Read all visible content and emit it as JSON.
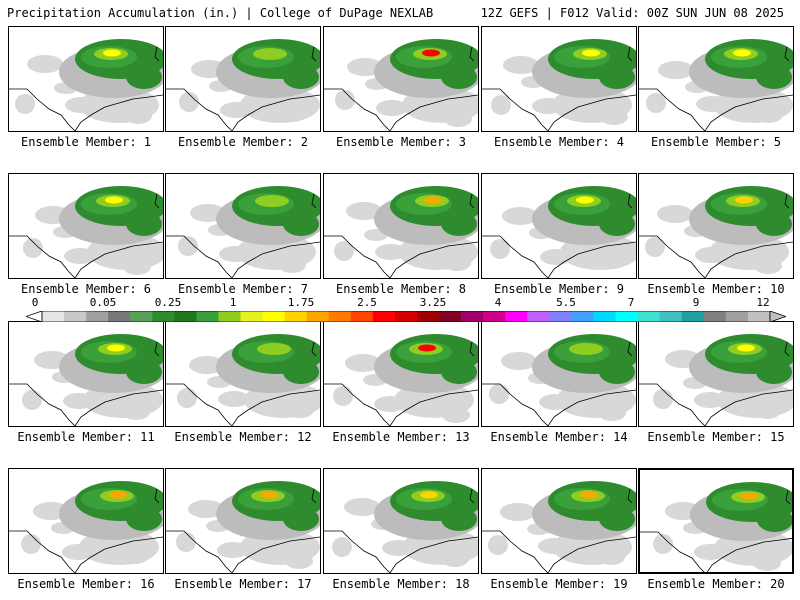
{
  "header": {
    "title_left": "Precipitation Accumulation (in.) | College of DuPage NEXLAB",
    "title_right": "12Z GEFS | F012 Valid: 00Z SUN JUN 08 2025"
  },
  "colorbar": {
    "tick_labels": [
      "0",
      "0.05",
      "0.25",
      "1",
      "1.75",
      "2.5",
      "3.25",
      "4",
      "5.5",
      "7",
      "9",
      "12"
    ],
    "colors": [
      "#e6e6e6",
      "#c8c8c8",
      "#a0a0a0",
      "#787878",
      "#58a058",
      "#2e8b2e",
      "#1f7a1f",
      "#3aa03a",
      "#8fce20",
      "#e8f020",
      "#ffff00",
      "#ffd200",
      "#ffa500",
      "#ff7a00",
      "#ff4500",
      "#ff0000",
      "#d40000",
      "#a00000",
      "#800020",
      "#a0006a",
      "#d0008c",
      "#ff00ff",
      "#c060ff",
      "#8080ff",
      "#40a0ff",
      "#00d8ff",
      "#00ffff",
      "#40e0d0",
      "#40c0c0",
      "#20a0a0",
      "#808080",
      "#a0a0a0",
      "#c0c0c0"
    ]
  },
  "members": [
    {
      "label": "Ensemble Member: 1",
      "max_color": "#ffff00"
    },
    {
      "label": "Ensemble Member: 2",
      "max_color": "#8fce20"
    },
    {
      "label": "Ensemble Member: 3",
      "max_color": "#ff0000"
    },
    {
      "label": "Ensemble Member: 4",
      "max_color": "#ffff00"
    },
    {
      "label": "Ensemble Member: 5",
      "max_color": "#ffff00"
    },
    {
      "label": "Ensemble Member: 6",
      "max_color": "#ffff00"
    },
    {
      "label": "Ensemble Member: 7",
      "max_color": "#8fce20"
    },
    {
      "label": "Ensemble Member: 8",
      "max_color": "#ffa500"
    },
    {
      "label": "Ensemble Member: 9",
      "max_color": "#ffff00"
    },
    {
      "label": "Ensemble Member: 10",
      "max_color": "#ffd200"
    },
    {
      "label": "Ensemble Member: 11",
      "max_color": "#ffff00"
    },
    {
      "label": "Ensemble Member: 12",
      "max_color": "#8fce20"
    },
    {
      "label": "Ensemble Member: 13",
      "max_color": "#ff0000"
    },
    {
      "label": "Ensemble Member: 14",
      "max_color": "#8fce20"
    },
    {
      "label": "Ensemble Member: 15",
      "max_color": "#ffff00"
    },
    {
      "label": "Ensemble Member: 16",
      "max_color": "#ffa500"
    },
    {
      "label": "Ensemble Member: 17",
      "max_color": "#ffa500"
    },
    {
      "label": "Ensemble Member: 18",
      "max_color": "#ffd200"
    },
    {
      "label": "Ensemble Member: 19",
      "max_color": "#ffa500"
    },
    {
      "label": "Ensemble Member: 20",
      "max_color": "#ffa500"
    }
  ]
}
